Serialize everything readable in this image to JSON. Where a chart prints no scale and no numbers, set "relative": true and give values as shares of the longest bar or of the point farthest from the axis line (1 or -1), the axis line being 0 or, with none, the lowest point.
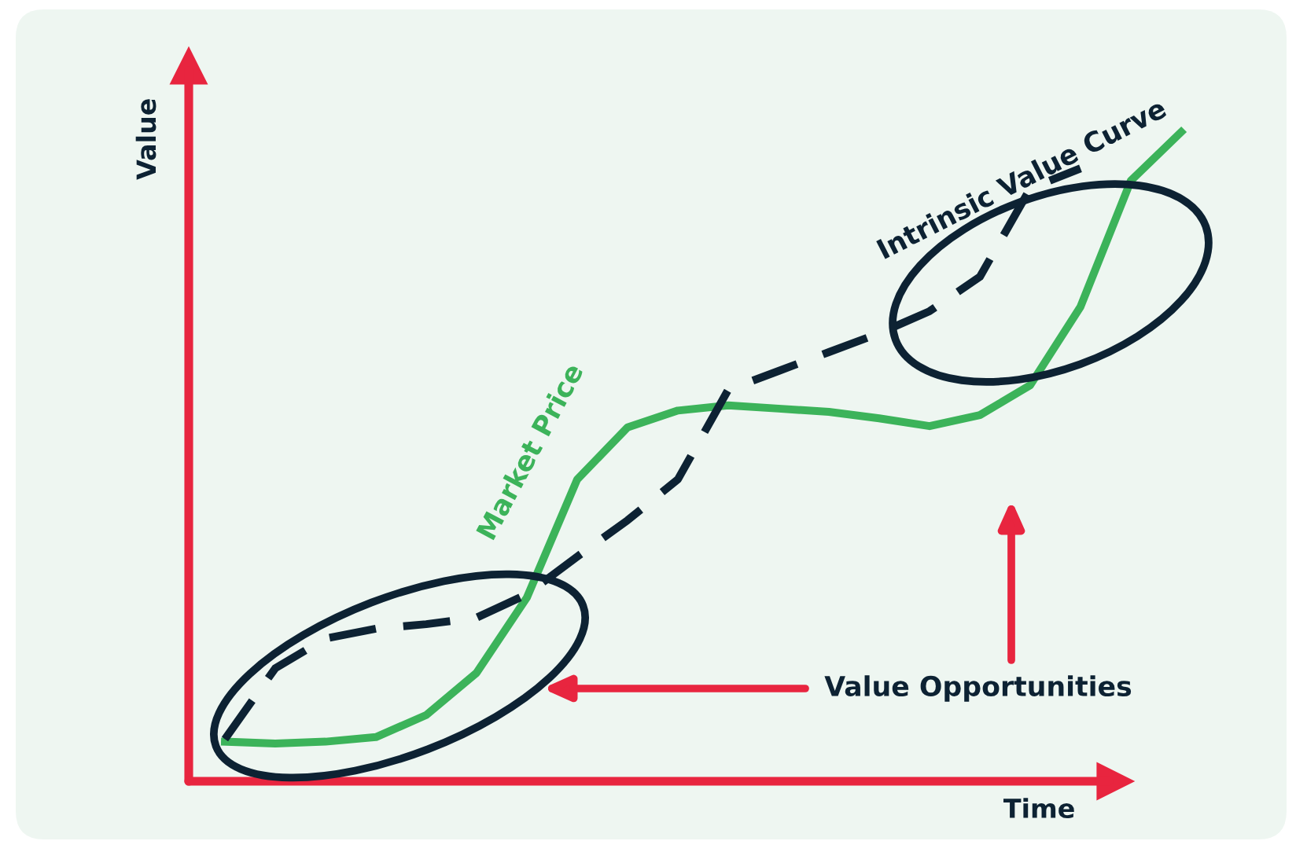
{
  "chart_data": {
    "type": "line",
    "relative": true,
    "xlabel": "Time",
    "ylabel": "Value",
    "categories": [
      null,
      null,
      null,
      null,
      null,
      null,
      null,
      null,
      null,
      null,
      null,
      null,
      null,
      null,
      null,
      null,
      null,
      null,
      null,
      null
    ],
    "series": [
      {
        "name": "Market Price",
        "color": "#3cb35a",
        "line_style": "solid",
        "values": [
          0.061,
          0.058,
          0.061,
          0.068,
          0.102,
          0.167,
          0.283,
          0.465,
          0.545,
          0.571,
          0.579,
          0.574,
          0.569,
          0.559,
          0.547,
          0.564,
          0.61,
          0.731,
          0.925,
          1.0
        ]
      },
      {
        "name": "Intrinsic Value Curve",
        "color": "#0d2233",
        "line_style": "dashed",
        "values": [
          0.065,
          0.174,
          0.22,
          0.235,
          0.242,
          0.252,
          0.288,
          0.346,
          0.402,
          0.465,
          0.603,
          0.632,
          0.661,
          0.69,
          0.724,
          0.777,
          0.913,
          0.944,
          null,
          null
        ]
      }
    ],
    "annotations": [
      "Value Opportunities"
    ]
  }
}
